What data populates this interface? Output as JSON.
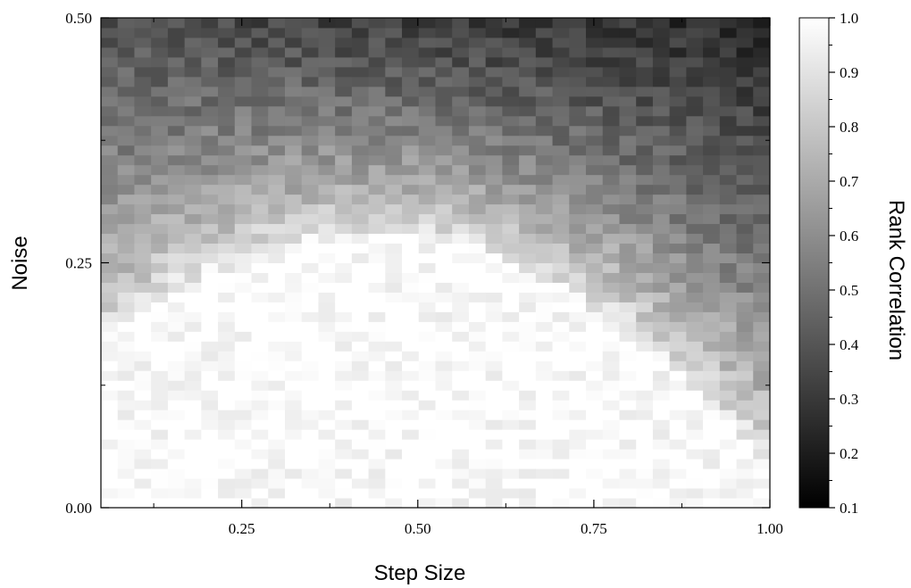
{
  "chart_data": {
    "type": "heatmap",
    "title": "",
    "xlabel": "Step Size",
    "ylabel": "Noise",
    "xlim": [
      0.05,
      1.0
    ],
    "ylim": [
      0.0,
      0.5
    ],
    "x_ticks": [
      {
        "value": 0.25,
        "label": "0.25"
      },
      {
        "value": 0.5,
        "label": "0.50"
      },
      {
        "value": 0.75,
        "label": "0.75"
      },
      {
        "value": 1.0,
        "label": "1.00"
      }
    ],
    "y_ticks": [
      {
        "value": 0.0,
        "label": "0.00"
      },
      {
        "value": 0.25,
        "label": "0.25"
      },
      {
        "value": 0.5,
        "label": "0.50"
      }
    ],
    "colorbar": {
      "label": "Rank Correlation",
      "range": [
        0.1,
        1.0
      ],
      "colormap": "grayscale",
      "color_low": "#000000",
      "color_high": "#ffffff",
      "ticks": [
        {
          "value": 0.1,
          "label": "0.1"
        },
        {
          "value": 0.2,
          "label": "0.2"
        },
        {
          "value": 0.3,
          "label": "0.3"
        },
        {
          "value": 0.4,
          "label": "0.4"
        },
        {
          "value": 0.5,
          "label": "0.5"
        },
        {
          "value": 0.6,
          "label": "0.6"
        },
        {
          "value": 0.7,
          "label": "0.7"
        },
        {
          "value": 0.8,
          "label": "0.8"
        },
        {
          "value": 0.9,
          "label": "0.9"
        },
        {
          "value": 1.0,
          "label": "1.0"
        }
      ]
    },
    "grid": false,
    "x_bins": 40,
    "y_bins": 50,
    "pattern": "Rank correlation is ~1.0 at low noise across step sizes and falls to ~0.2–0.35 at high noise (0.5). The high-correlation region extends to ~0.17–0.27 noise for step sizes 0.25–0.60, and shrinks at large step sizes, with correlation near 1.0 only below ~0.03 noise at step size 1.00.",
    "cells": [
      {
        "x": 0.1,
        "noise_range": [
          0.0,
          0.15
        ],
        "value": 1.0
      },
      {
        "x": 0.1,
        "noise_range": [
          0.2,
          0.25
        ],
        "value": 0.7
      },
      {
        "x": 0.1,
        "noise_range": [
          0.3,
          0.35
        ],
        "value": 0.55
      },
      {
        "x": 0.1,
        "noise_range": [
          0.45,
          0.5
        ],
        "value": 0.4
      },
      {
        "x": 0.3,
        "noise_range": [
          0.0,
          0.17
        ],
        "value": 1.0
      },
      {
        "x": 0.3,
        "noise_range": [
          0.22,
          0.27
        ],
        "value": 0.85
      },
      {
        "x": 0.3,
        "noise_range": [
          0.35,
          0.4
        ],
        "value": 0.5
      },
      {
        "x": 0.3,
        "noise_range": [
          0.45,
          0.5
        ],
        "value": 0.4
      },
      {
        "x": 0.5,
        "noise_range": [
          0.0,
          0.18
        ],
        "value": 1.0
      },
      {
        "x": 0.5,
        "noise_range": [
          0.22,
          0.27
        ],
        "value": 0.85
      },
      {
        "x": 0.5,
        "noise_range": [
          0.35,
          0.4
        ],
        "value": 0.45
      },
      {
        "x": 0.5,
        "noise_range": [
          0.45,
          0.5
        ],
        "value": 0.35
      },
      {
        "x": 0.75,
        "noise_range": [
          0.0,
          0.07
        ],
        "value": 1.0
      },
      {
        "x": 0.75,
        "noise_range": [
          0.12,
          0.17
        ],
        "value": 0.85
      },
      {
        "x": 0.75,
        "noise_range": [
          0.25,
          0.3
        ],
        "value": 0.65
      },
      {
        "x": 0.75,
        "noise_range": [
          0.45,
          0.5
        ],
        "value": 0.25
      },
      {
        "x": 0.95,
        "noise_range": [
          0.0,
          0.03
        ],
        "value": 0.95
      },
      {
        "x": 0.95,
        "noise_range": [
          0.07,
          0.12
        ],
        "value": 0.65
      },
      {
        "x": 0.95,
        "noise_range": [
          0.2,
          0.25
        ],
        "value": 0.45
      },
      {
        "x": 0.95,
        "noise_range": [
          0.45,
          0.5
        ],
        "value": 0.15
      }
    ]
  }
}
